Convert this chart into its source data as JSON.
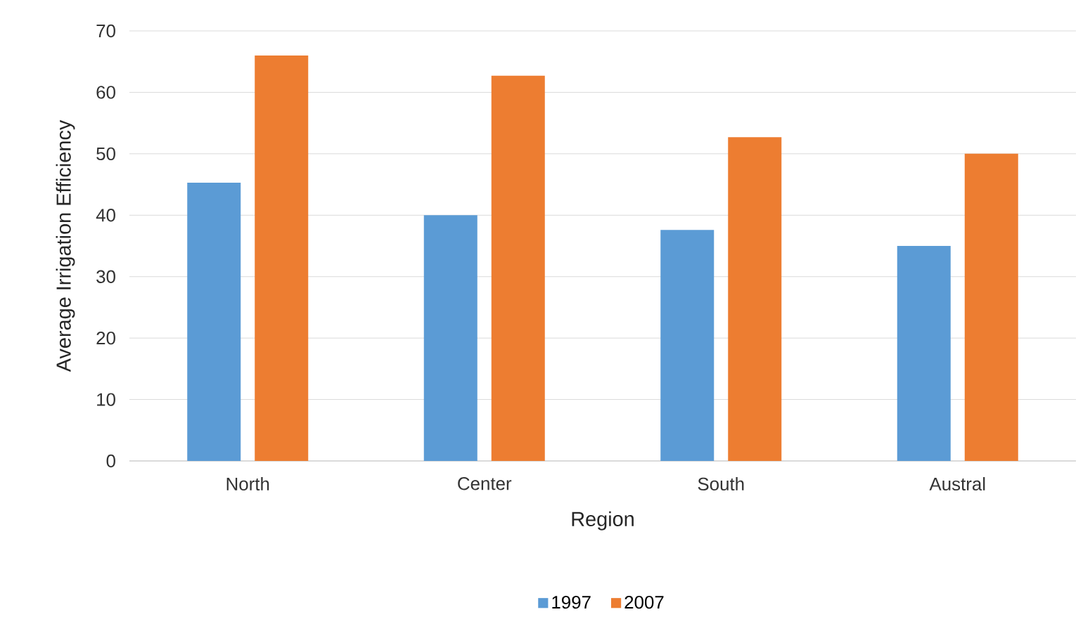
{
  "chart_data": {
    "type": "bar",
    "xlabel": "Region",
    "ylabel": "Average Irrigation Efficiency",
    "categories": [
      "North",
      "Center",
      "South",
      "Austral"
    ],
    "series": [
      {
        "name": "1997",
        "color": "#5b9bd5",
        "values": [
          45.3,
          40,
          37.6,
          35
        ]
      },
      {
        "name": "2007",
        "color": "#ed7d31",
        "values": [
          66,
          62.7,
          52.7,
          50
        ]
      }
    ],
    "ylim": [
      0,
      70
    ],
    "yticks": [
      0,
      10,
      20,
      30,
      40,
      50,
      60,
      70
    ],
    "grid": "y",
    "legend": "bottom"
  }
}
